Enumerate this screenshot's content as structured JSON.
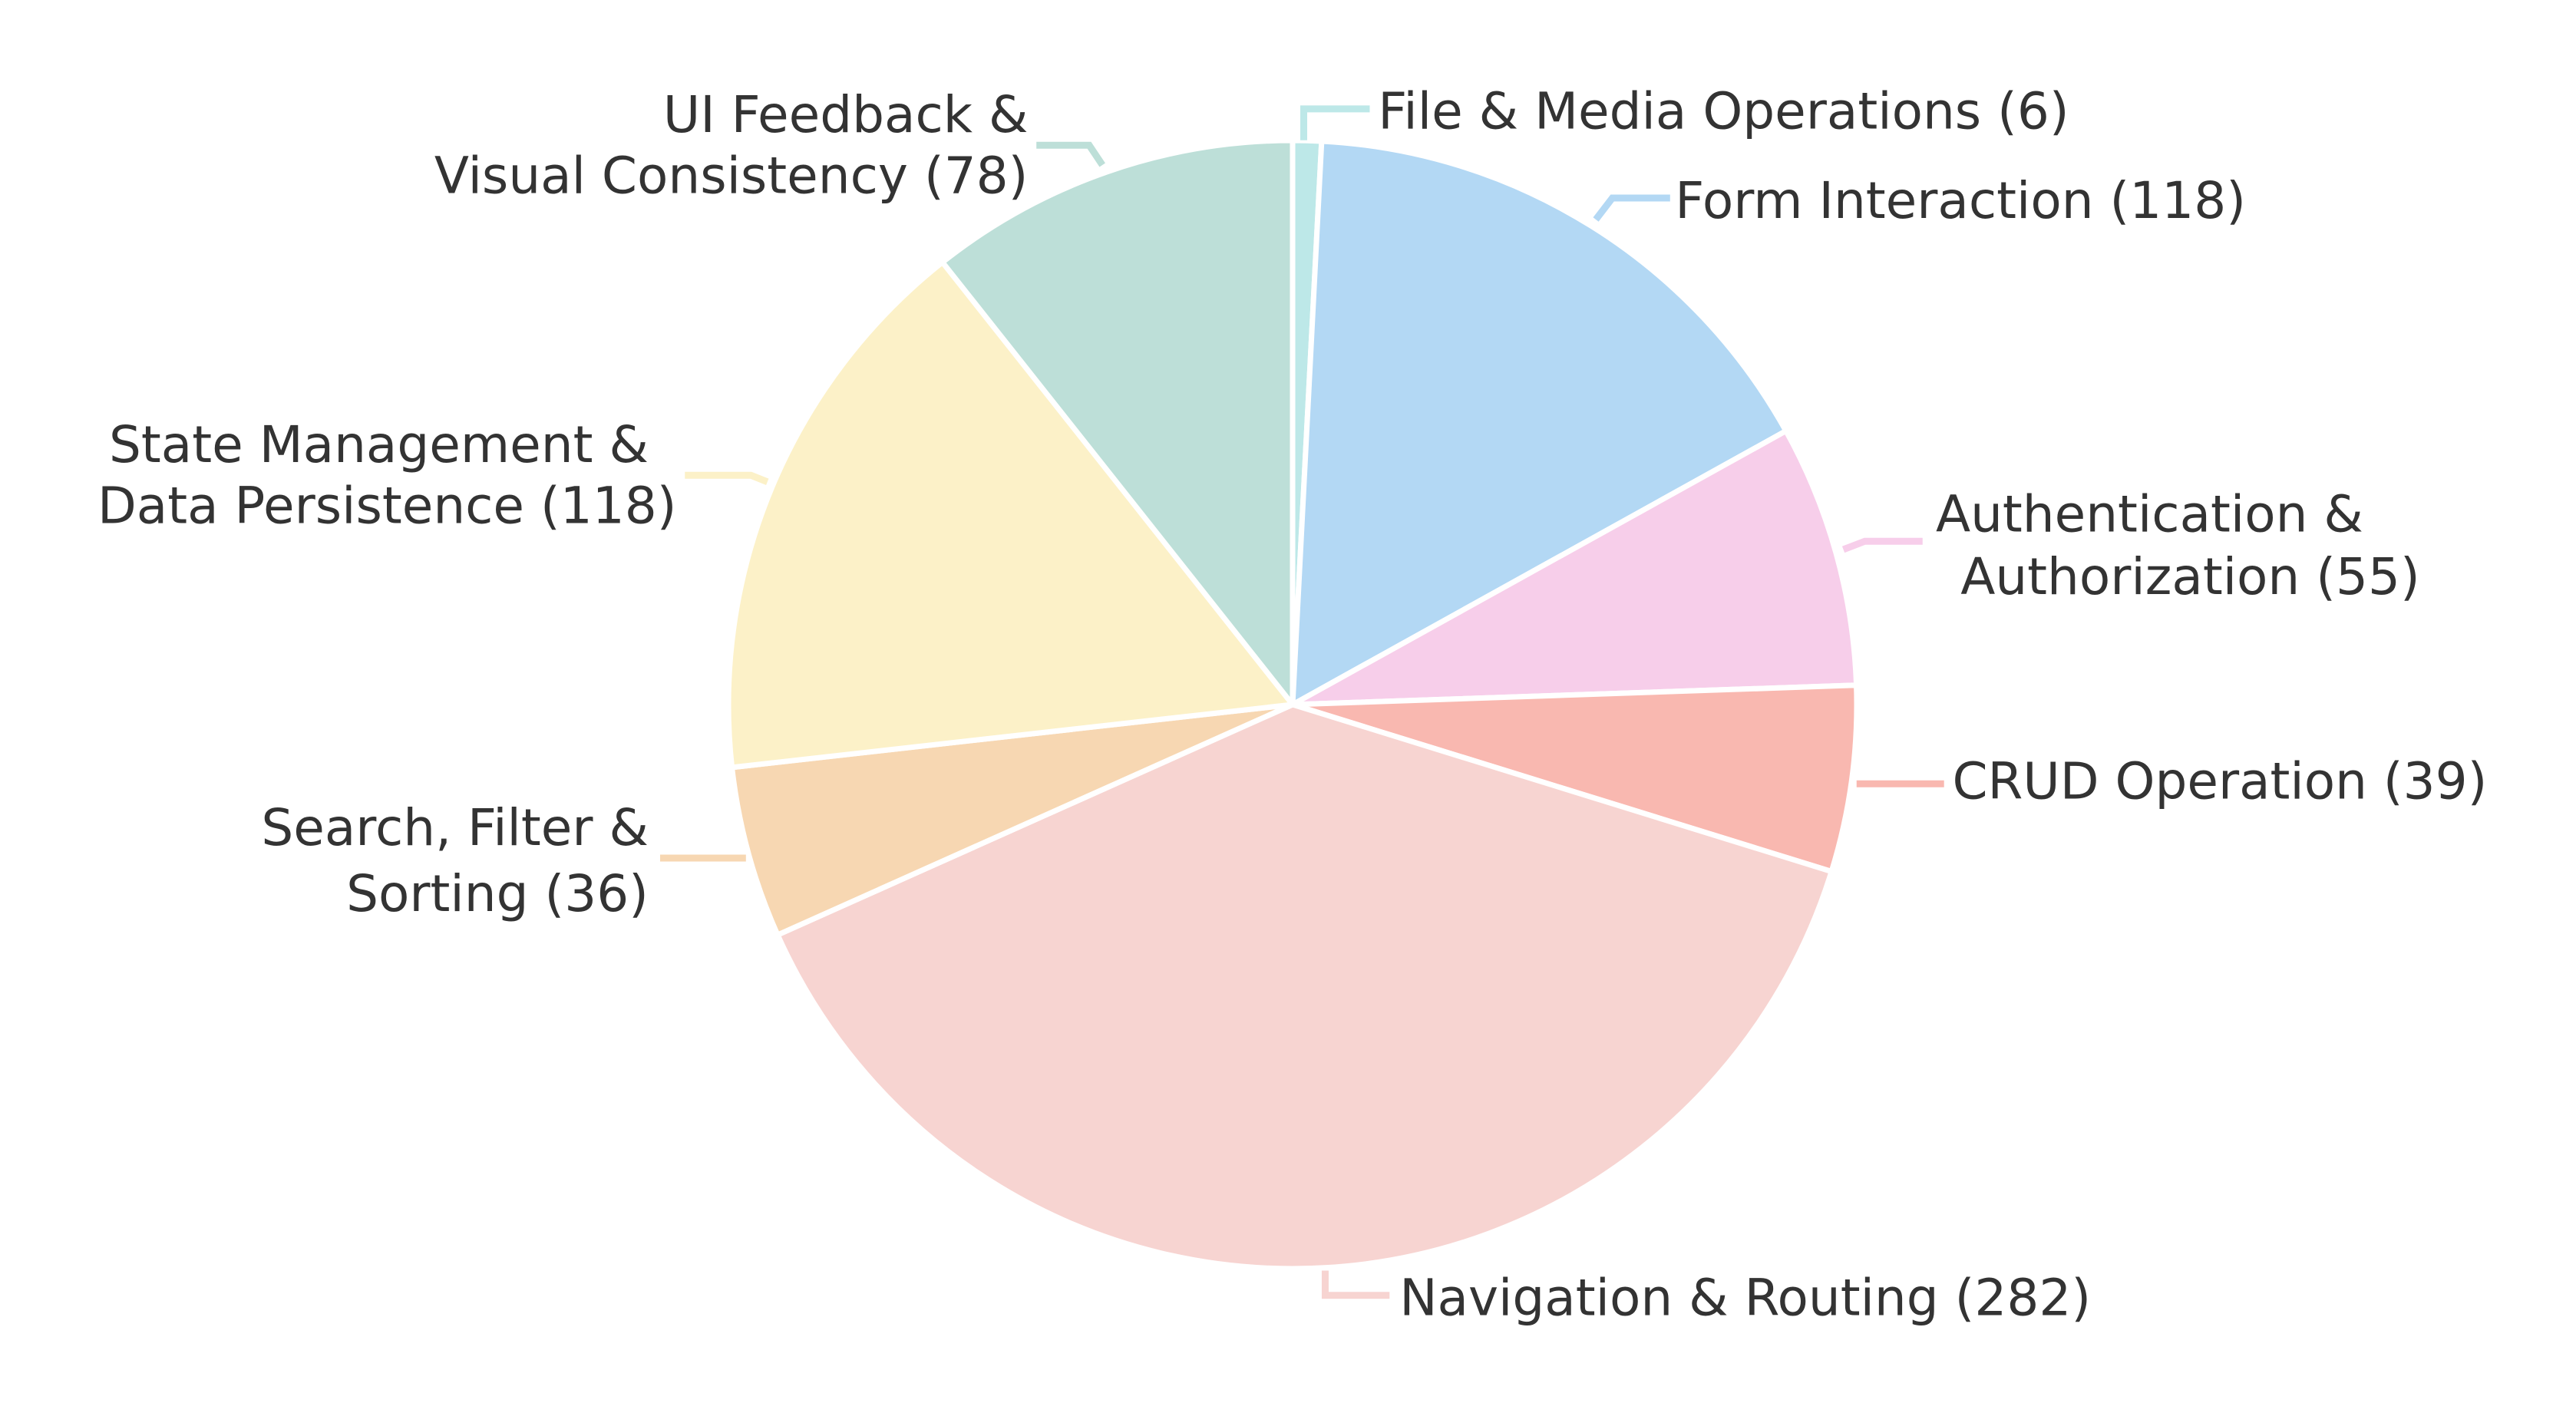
{
  "chart_data": {
    "type": "pie",
    "title": "",
    "start_angle": "top",
    "direction": "clockwise",
    "slices": [
      {
        "label": [
          "File & Media Operations  (6)"
        ],
        "value": 6,
        "color": "#bde8e8"
      },
      {
        "label": [
          "Form Interaction  (118)"
        ],
        "value": 118,
        "color": "#b3d8f4"
      },
      {
        "label": [
          "Authentication &",
          "Authorization  (55)"
        ],
        "value": 55,
        "color": "#f7ceea"
      },
      {
        "label": [
          "CRUD Operation  (39)"
        ],
        "value": 39,
        "color": "#f9b8b0"
      },
      {
        "label": [
          "Navigation & Routing  (282)"
        ],
        "value": 282,
        "color": "#f7d4d1"
      },
      {
        "label": [
          "Search, Filter &",
          "Sorting  (36)"
        ],
        "value": 36,
        "color": "#f7d7b2"
      },
      {
        "label": [
          "State Management &",
          "Data Persistence  (118)"
        ],
        "value": 118,
        "color": "#fcf1c8"
      },
      {
        "label": [
          "UI Feedback &",
          "Visual Consistency  (78)"
        ],
        "value": 78,
        "color": "#bddfd8"
      }
    ]
  }
}
